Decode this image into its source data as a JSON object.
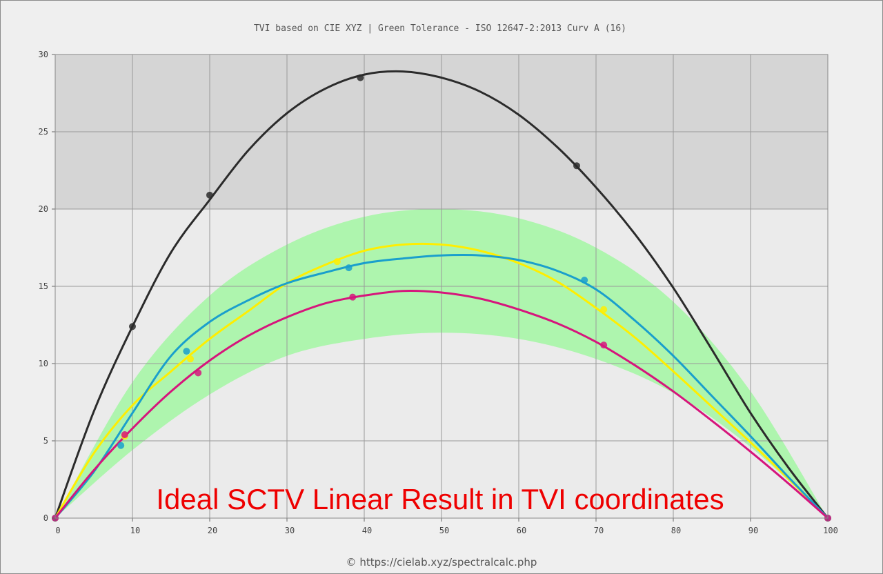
{
  "chart_data": {
    "type": "line",
    "title": "TVI based on CIE XYZ  |  Green Tolerance - ISO 12647-2:2013 Curv A (16)",
    "xlabel": "",
    "ylabel": "",
    "xlim": [
      0,
      100
    ],
    "ylim": [
      0,
      30
    ],
    "x_ticks": [
      "0",
      "10",
      "20",
      "30",
      "40",
      "50",
      "60",
      "70",
      "80",
      "90",
      "100"
    ],
    "y_ticks": [
      "0",
      "5",
      "10",
      "15",
      "20",
      "25",
      "30"
    ],
    "grid": true,
    "tolerance_band": {
      "color": "#aef5ae",
      "x": [
        0,
        10,
        20,
        30,
        40,
        50,
        60,
        70,
        80,
        90,
        100
      ],
      "upper": [
        0,
        8.8,
        14.4,
        17.7,
        19.5,
        20.0,
        19.4,
        17.5,
        14.0,
        8.2,
        0
      ],
      "lower": [
        0,
        4.4,
        8.0,
        10.5,
        11.6,
        12.0,
        11.6,
        10.3,
        8.1,
        4.6,
        0
      ]
    },
    "series": [
      {
        "color": "#2b2b2b",
        "curve_x": [
          0,
          5,
          10,
          15,
          20,
          25,
          30,
          35,
          40,
          45,
          50,
          55,
          60,
          65,
          70,
          75,
          80,
          85,
          90,
          95,
          100
        ],
        "curve_y": [
          0,
          6.9,
          12.4,
          17.2,
          20.6,
          23.8,
          26.2,
          27.8,
          28.7,
          28.9,
          28.5,
          27.6,
          26.1,
          24.0,
          21.4,
          18.4,
          14.9,
          10.9,
          6.8,
          3.2,
          0
        ],
        "points_x": [
          0,
          10,
          20,
          39.5,
          67.5,
          100
        ],
        "points_y": [
          0,
          12.4,
          20.9,
          28.5,
          22.8,
          0
        ]
      },
      {
        "color": "#ffee00",
        "curve_x": [
          0,
          5,
          10,
          15,
          20,
          25,
          30,
          35,
          40,
          45,
          50,
          55,
          60,
          65,
          70,
          75,
          80,
          85,
          90,
          95,
          100
        ],
        "curve_y": [
          0,
          4.2,
          7.3,
          9.5,
          11.6,
          13.4,
          15.2,
          16.4,
          17.3,
          17.7,
          17.7,
          17.3,
          16.5,
          15.3,
          13.6,
          11.7,
          9.5,
          7.2,
          4.9,
          2.5,
          0
        ],
        "points_x": [
          0,
          9,
          17.5,
          36.5,
          71,
          100
        ],
        "points_y": [
          0,
          5.3,
          10.3,
          16.6,
          13.5,
          0
        ]
      },
      {
        "color": "#1a9fcc",
        "curve_x": [
          0,
          5,
          10,
          15,
          20,
          25,
          30,
          35,
          40,
          45,
          50,
          55,
          60,
          65,
          70,
          75,
          80,
          85,
          90,
          95,
          100
        ],
        "curve_y": [
          0,
          3.0,
          6.8,
          10.5,
          12.7,
          14.1,
          15.2,
          15.9,
          16.5,
          16.8,
          17.0,
          17.0,
          16.7,
          16.0,
          14.8,
          12.8,
          10.5,
          7.9,
          5.3,
          2.6,
          0
        ],
        "points_x": [
          0,
          8.5,
          17,
          38,
          68.5,
          100
        ],
        "points_y": [
          0,
          4.7,
          10.8,
          16.2,
          15.4,
          0
        ]
      },
      {
        "color": "#d6157c",
        "curve_x": [
          0,
          5,
          10,
          15,
          20,
          25,
          30,
          35,
          40,
          45,
          50,
          55,
          60,
          65,
          70,
          75,
          80,
          85,
          90,
          95,
          100
        ],
        "curve_y": [
          0,
          3.1,
          5.8,
          8.2,
          10.2,
          11.8,
          13.0,
          13.9,
          14.4,
          14.7,
          14.6,
          14.2,
          13.5,
          12.6,
          11.4,
          9.9,
          8.2,
          6.3,
          4.3,
          2.2,
          0
        ],
        "points_x": [
          0,
          9,
          18.5,
          38.5,
          71,
          100
        ],
        "points_y": [
          0,
          5.4,
          9.4,
          14.3,
          11.2,
          0
        ]
      }
    ],
    "annotation": "Ideal SCTV Linear Result in TVI coordinates"
  },
  "footer": "© https://cielab.xyz/spectralcalc.php",
  "colors": {
    "plot_upper_bg": "#d5d5d5",
    "plot_lower_bg": "#ebebeb",
    "grid": "#999999",
    "annotation": "#ee0000"
  }
}
